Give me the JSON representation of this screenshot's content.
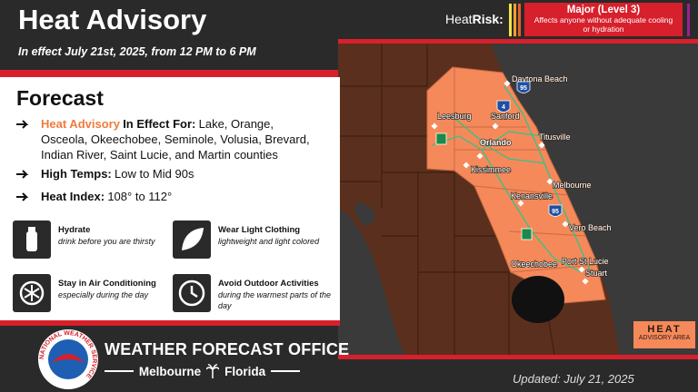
{
  "header": {
    "title": "Heat Advisory",
    "subtitle": "In effect July 21st, 2025, from 12 PM to 6 PM"
  },
  "heatrisk": {
    "label_regular": "Heat",
    "label_bold": "Risk:",
    "level": "Major (Level 3)",
    "description": "Affects anyone without adequate cooling or hydration"
  },
  "forecast": {
    "title": "Forecast",
    "items": [
      {
        "highlight": "Heat Advisory",
        "label": "In Effect For:",
        "text": "Lake, Orange, Osceola, Okeechobee, Seminole, Volusia, Brevard, Indian River, Saint Lucie, and Martin counties"
      },
      {
        "label": "High Temps:",
        "text": "Low to Mid 90s"
      },
      {
        "label": "Heat Index:",
        "text": "108° to 112°"
      }
    ]
  },
  "tips": [
    {
      "title": "Hydrate",
      "text": "drink before you are thirsty"
    },
    {
      "title": "Wear Light Clothing",
      "text": "lightweight and light colored"
    },
    {
      "title": "Stay in Air Conditioning",
      "text": "especially during the day"
    },
    {
      "title": "Avoid Outdoor Activities",
      "text": "during the warmest parts of the day"
    }
  ],
  "map": {
    "cities": [
      "Daytona Beach",
      "Leesburg",
      "Sanford",
      "Titusville",
      "Orlando",
      "Kissimmee",
      "Kenansville",
      "Melbourne",
      "Vero Beach",
      "Okeechobee",
      "Port St Lucie",
      "Stuart"
    ],
    "shields": [
      "4",
      "95",
      "95"
    ],
    "legend": {
      "title": "HEAT",
      "subtitle": "ADVISORY AREA"
    }
  },
  "footer": {
    "logo_text": "NATIONAL WEATHER SERVICE",
    "office": "WEATHER FORECAST OFFICE",
    "city": "Melbourne",
    "state": "Florida",
    "updated": "Updated: July 21, 2025"
  }
}
